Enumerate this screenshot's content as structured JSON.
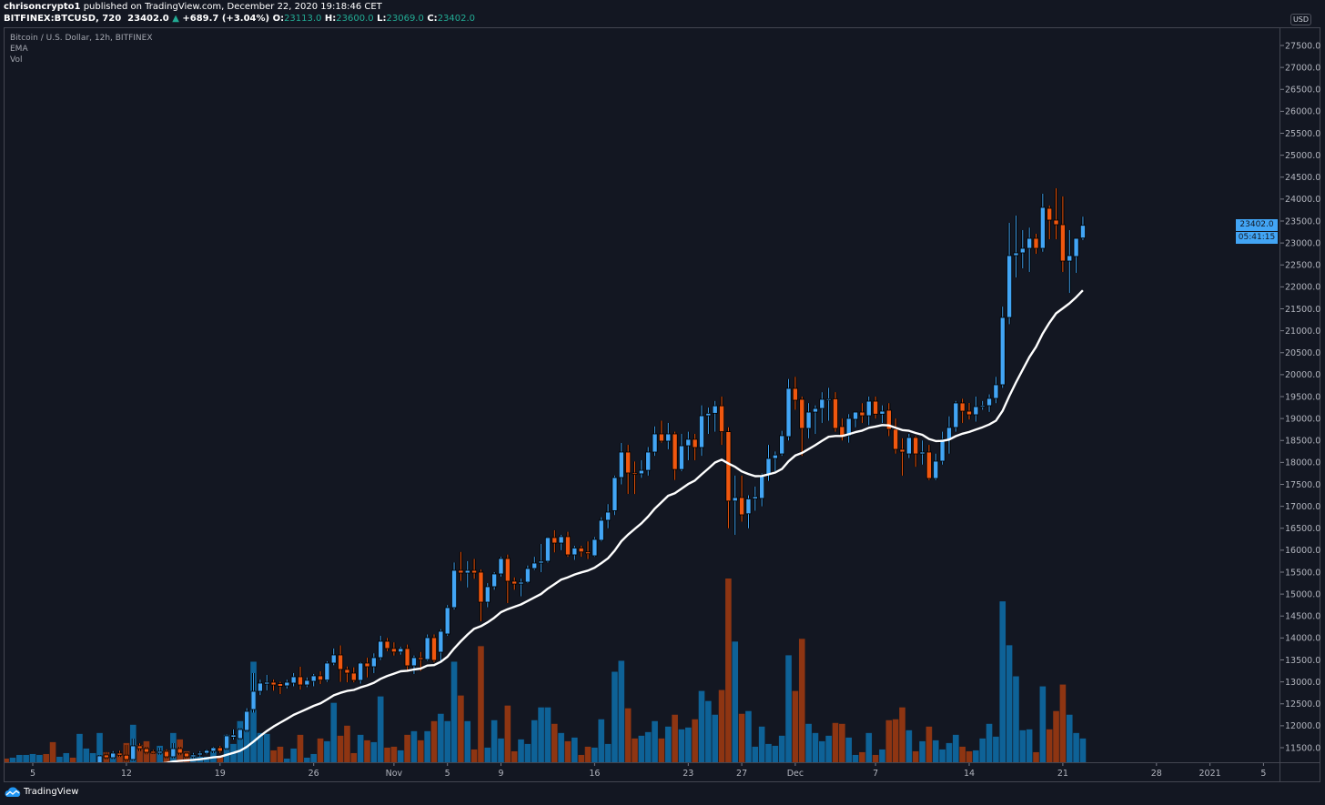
{
  "header": {
    "author": "chrisoncrypto1",
    "published": "published on TradingView.com, December 22, 2020 19:18:46 CET",
    "symbol": "BITFINEX:BTCUSD, 720",
    "last": "23402.0",
    "change": "+689.7 (+3.04%)",
    "o_label": "O:",
    "o": "23113.0",
    "h_label": "H:",
    "h": "23600.0",
    "l_label": "L:",
    "l": "23069.0",
    "c_label": "C:",
    "c": "23402.0"
  },
  "legend": {
    "title": "Bitcoin / U.S. Dollar, 12h, BITFINEX",
    "ema": "EMA",
    "vol": "Vol"
  },
  "axis": {
    "currency": "USD",
    "last_price_label": "23402.0",
    "countdown": "05:41:15"
  },
  "branding": {
    "name": "TradingView"
  },
  "colors": {
    "background": "#131722",
    "up": "#42a5f5",
    "down": "#f0570f",
    "vol_up": "#0e6297",
    "vol_down": "#8e3512",
    "ema": "#ffffff",
    "header_values": "#22ab94"
  },
  "chart_data": {
    "type": "candlestick",
    "symbol": "BITFINEX:BTCUSD",
    "interval": "12h",
    "start": "2020-10-03T00:00",
    "fields": [
      "open",
      "high",
      "low",
      "close",
      "volume_relative"
    ],
    "ylim": [
      11250,
      27750
    ],
    "y_ticks": [
      11500,
      12000,
      12500,
      13000,
      13500,
      14000,
      14500,
      15000,
      15500,
      16000,
      16500,
      17000,
      17500,
      18000,
      18500,
      19000,
      19500,
      20000,
      20500,
      21000,
      21500,
      22000,
      22500,
      23000,
      23500,
      24000,
      24500,
      25000,
      25500,
      26000,
      26500,
      27000,
      27500
    ],
    "x_ticks": [
      {
        "date": "2020-10-05",
        "label": "5"
      },
      {
        "date": "2020-10-12",
        "label": "12"
      },
      {
        "date": "2020-10-19",
        "label": "19"
      },
      {
        "date": "2020-10-26",
        "label": "26"
      },
      {
        "date": "2020-11-01",
        "label": "Nov"
      },
      {
        "date": "2020-11-05",
        "label": "5"
      },
      {
        "date": "2020-11-09",
        "label": "9"
      },
      {
        "date": "2020-11-16",
        "label": "16"
      },
      {
        "date": "2020-11-23",
        "label": "23"
      },
      {
        "date": "2020-11-27",
        "label": "27"
      },
      {
        "date": "2020-12-01",
        "label": "Dec"
      },
      {
        "date": "2020-12-07",
        "label": "7"
      },
      {
        "date": "2020-12-14",
        "label": "14"
      },
      {
        "date": "2020-12-21",
        "label": "21"
      },
      {
        "date": "2020-12-28",
        "label": "28"
      },
      {
        "date": "2021-01-01",
        "label": "2021"
      },
      {
        "date": "2021-01-05",
        "label": "5"
      }
    ],
    "indicators": [
      "EMA",
      "Vol"
    ],
    "candles": [
      [
        10580,
        10600,
        10500,
        10550,
        4
      ],
      [
        10550,
        10620,
        10520,
        10560,
        5
      ],
      [
        10560,
        10650,
        10520,
        10620,
        8
      ],
      [
        10620,
        10700,
        10600,
        10670,
        8
      ],
      [
        10670,
        10760,
        10630,
        10720,
        9
      ],
      [
        10720,
        10800,
        10700,
        10790,
        8
      ],
      [
        10790,
        10800,
        10600,
        10640,
        9
      ],
      [
        10640,
        10680,
        10550,
        10600,
        22
      ],
      [
        10600,
        10680,
        10570,
        10650,
        6
      ],
      [
        10650,
        10700,
        10620,
        10670,
        10
      ],
      [
        10670,
        10800,
        10540,
        10640,
        5
      ],
      [
        10640,
        10950,
        10620,
        10920,
        31
      ],
      [
        10920,
        11000,
        10850,
        10980,
        15
      ],
      [
        10980,
        11120,
        10940,
        11060,
        10
      ],
      [
        11148,
        11330,
        11100,
        11314,
        32
      ],
      [
        11335,
        11400,
        11230,
        11272,
        11
      ],
      [
        11272,
        11420,
        11240,
        11376,
        5
      ],
      [
        11376,
        11430,
        11290,
        11330,
        10
      ],
      [
        11330,
        11560,
        11180,
        11231,
        21
      ],
      [
        11231,
        11708,
        11200,
        11542,
        41
      ],
      [
        11542,
        11600,
        11420,
        11479,
        19
      ],
      [
        11479,
        11520,
        11350,
        11396,
        23
      ],
      [
        11417,
        11450,
        11360,
        11376,
        11
      ],
      [
        11376,
        11500,
        11340,
        11417,
        18
      ],
      [
        11417,
        11460,
        11250,
        11293,
        13
      ],
      [
        11293,
        11604,
        11260,
        11479,
        32
      ],
      [
        11479,
        11520,
        11330,
        11376,
        25
      ],
      [
        11376,
        11400,
        11250,
        11293,
        12
      ],
      [
        11293,
        11380,
        11260,
        11335,
        8
      ],
      [
        11335,
        11420,
        11300,
        11376,
        6
      ],
      [
        11376,
        11460,
        11350,
        11438,
        6
      ],
      [
        11420,
        11520,
        11380,
        11500,
        12
      ],
      [
        11500,
        11540,
        11380,
        11420,
        6
      ],
      [
        11479,
        11800,
        11440,
        11770,
        30
      ],
      [
        11740,
        11915,
        11687,
        11790,
        20
      ],
      [
        11708,
        11950,
        11680,
        11915,
        45
      ],
      [
        11894,
        12400,
        11850,
        12329,
        56
      ],
      [
        12370,
        13200,
        12300,
        12785,
        110
      ],
      [
        12785,
        13050,
        12700,
        12972,
        32
      ],
      [
        12950,
        13159,
        12806,
        12992,
        31
      ],
      [
        12992,
        13050,
        12800,
        12930,
        13
      ],
      [
        12960,
        13000,
        12723,
        12900,
        17
      ],
      [
        12910,
        13050,
        12850,
        12992,
        4
      ],
      [
        12972,
        13200,
        12900,
        13117,
        15
      ],
      [
        13117,
        13345,
        12827,
        12930,
        30
      ],
      [
        12930,
        13100,
        12880,
        13034,
        5
      ],
      [
        13013,
        13180,
        12900,
        13138,
        9
      ],
      [
        13138,
        13240,
        12950,
        13040,
        26
      ],
      [
        13040,
        13470,
        13000,
        13428,
        23
      ],
      [
        13428,
        13760,
        13380,
        13614,
        65
      ],
      [
        13614,
        13830,
        13000,
        13283,
        29
      ],
      [
        13283,
        13350,
        12990,
        13200,
        40
      ],
      [
        13200,
        13330,
        12990,
        13034,
        10
      ],
      [
        13034,
        13450,
        12960,
        13428,
        30
      ],
      [
        13428,
        13550,
        13100,
        13345,
        24
      ],
      [
        13345,
        13650,
        13200,
        13552,
        22
      ],
      [
        13552,
        14050,
        13500,
        13925,
        72
      ],
      [
        13925,
        14000,
        13700,
        13760,
        16
      ],
      [
        13760,
        13900,
        13600,
        13680,
        17
      ],
      [
        13680,
        13800,
        13620,
        13760,
        13
      ],
      [
        13760,
        13850,
        13250,
        13366,
        30
      ],
      [
        13366,
        13600,
        13180,
        13552,
        34
      ],
      [
        13552,
        13680,
        13250,
        13510,
        24
      ],
      [
        13510,
        14080,
        13480,
        14008,
        34
      ],
      [
        14008,
        14080,
        13450,
        13490,
        45
      ],
      [
        13676,
        14200,
        13450,
        14153,
        53
      ],
      [
        14091,
        14750,
        14050,
        14692,
        45
      ],
      [
        14692,
        15720,
        14650,
        15542,
        110
      ],
      [
        15542,
        15960,
        15300,
        15480,
        73
      ],
      [
        15480,
        15750,
        15150,
        15540,
        45
      ],
      [
        15540,
        15800,
        15350,
        15480,
        14
      ],
      [
        15500,
        15560,
        14380,
        14816,
        127
      ],
      [
        14816,
        15250,
        14700,
        15169,
        16
      ],
      [
        15169,
        15500,
        15100,
        15459,
        46
      ],
      [
        15459,
        15850,
        15400,
        15811,
        26
      ],
      [
        15811,
        15900,
        14795,
        15293,
        62
      ],
      [
        15293,
        15380,
        15100,
        15230,
        12
      ],
      [
        15230,
        15350,
        14950,
        15272,
        25
      ],
      [
        15272,
        15650,
        15250,
        15583,
        20
      ],
      [
        15583,
        15850,
        15550,
        15707,
        46
      ],
      [
        15707,
        16142,
        15500,
        15750,
        60
      ],
      [
        15749,
        16300,
        15720,
        16288,
        60
      ],
      [
        16288,
        16454,
        15950,
        16163,
        42
      ],
      [
        16163,
        16350,
        16000,
        16309,
        32
      ],
      [
        16309,
        16420,
        15850,
        15894,
        23
      ],
      [
        15894,
        16100,
        15780,
        16050,
        27
      ],
      [
        16050,
        16100,
        15850,
        15960,
        8
      ],
      [
        15960,
        16200,
        15800,
        15920,
        17
      ],
      [
        15873,
        16300,
        15850,
        16246,
        16
      ],
      [
        16226,
        16750,
        16200,
        16682,
        47
      ],
      [
        16682,
        17050,
        16500,
        16868,
        20
      ],
      [
        16900,
        17700,
        16800,
        17655,
        99
      ],
      [
        17656,
        18443,
        17500,
        18236,
        111
      ],
      [
        18236,
        18400,
        17283,
        17760,
        59
      ],
      [
        17760,
        18020,
        17280,
        17740,
        26
      ],
      [
        17740,
        18050,
        17650,
        17820,
        29
      ],
      [
        17820,
        18350,
        17700,
        18236,
        33
      ],
      [
        18236,
        18820,
        18150,
        18650,
        45
      ],
      [
        18650,
        18950,
        18450,
        18485,
        26
      ],
      [
        18485,
        18900,
        18300,
        18650,
        39
      ],
      [
        18650,
        18700,
        17600,
        17840,
        52
      ],
      [
        17840,
        18650,
        17800,
        18380,
        36
      ],
      [
        18380,
        18700,
        18050,
        18527,
        38
      ],
      [
        18527,
        18650,
        18050,
        18340,
        47
      ],
      [
        18340,
        19300,
        18150,
        19064,
        78
      ],
      [
        19064,
        19250,
        18650,
        19120,
        67
      ],
      [
        19120,
        19400,
        18700,
        19290,
        52
      ],
      [
        19290,
        19500,
        18400,
        18700,
        79
      ],
      [
        18700,
        18800,
        16500,
        17120,
        201
      ],
      [
        17120,
        17700,
        16350,
        17200,
        132
      ],
      [
        17200,
        17700,
        16650,
        16806,
        53
      ],
      [
        16830,
        17250,
        16500,
        17170,
        56
      ],
      [
        17170,
        17450,
        16900,
        17220,
        17
      ],
      [
        17180,
        17750,
        17000,
        17717,
        39
      ],
      [
        17717,
        18400,
        17580,
        18090,
        20
      ],
      [
        18090,
        18250,
        17800,
        18170,
        18
      ],
      [
        18194,
        18720,
        18150,
        18610,
        29
      ],
      [
        18588,
        19900,
        18500,
        19687,
        117
      ],
      [
        19687,
        19950,
        19200,
        19417,
        78
      ],
      [
        19438,
        19500,
        18150,
        18775,
        135
      ],
      [
        18775,
        19350,
        18550,
        19147,
        42
      ],
      [
        19147,
        19300,
        18650,
        19230,
        32
      ],
      [
        19230,
        19600,
        18900,
        19438,
        23
      ],
      [
        19420,
        19700,
        18950,
        19450,
        29
      ],
      [
        19450,
        19600,
        18700,
        18775,
        43
      ],
      [
        18817,
        19000,
        18500,
        18610,
        42
      ],
      [
        18610,
        19100,
        18450,
        19003,
        27
      ],
      [
        18982,
        19150,
        18800,
        19147,
        8
      ],
      [
        19147,
        19350,
        18900,
        19064,
        11
      ],
      [
        19064,
        19500,
        18850,
        19396,
        32
      ],
      [
        19396,
        19500,
        19000,
        19100,
        8
      ],
      [
        19100,
        19300,
        18900,
        19168,
        14
      ],
      [
        19189,
        19350,
        18600,
        18755,
        46
      ],
      [
        18755,
        19000,
        18200,
        18298,
        47
      ],
      [
        18298,
        18550,
        17700,
        18236,
        60
      ],
      [
        18194,
        18650,
        18100,
        18568,
        35
      ],
      [
        18568,
        18600,
        17900,
        18194,
        12
      ],
      [
        18194,
        18500,
        17950,
        18236,
        23
      ],
      [
        18236,
        18400,
        17600,
        17635,
        39
      ],
      [
        17635,
        18200,
        17600,
        18029,
        24
      ],
      [
        18029,
        18700,
        17950,
        18527,
        14
      ],
      [
        18527,
        19050,
        18200,
        18796,
        21
      ],
      [
        18796,
        19400,
        18700,
        19355,
        30
      ],
      [
        19355,
        19450,
        18900,
        19168,
        17
      ],
      [
        19168,
        19355,
        18980,
        19086,
        12
      ],
      [
        19086,
        19500,
        18930,
        19272,
        13
      ],
      [
        19272,
        19400,
        19200,
        19293,
        26
      ],
      [
        19293,
        19550,
        19150,
        19459,
        42
      ],
      [
        19459,
        19950,
        19350,
        19770,
        28
      ],
      [
        19770,
        21550,
        19700,
        21303,
        176
      ],
      [
        21303,
        23459,
        21150,
        22713,
        128
      ],
      [
        22713,
        23624,
        22215,
        22775,
        94
      ],
      [
        22775,
        23293,
        22422,
        22878,
        35
      ],
      [
        22878,
        23350,
        22340,
        23106,
        36
      ],
      [
        23106,
        23210,
        22754,
        22878,
        11
      ],
      [
        22878,
        24122,
        22800,
        23811,
        83
      ],
      [
        23790,
        23850,
        23085,
        23521,
        36
      ],
      [
        23521,
        24246,
        23085,
        23417,
        56
      ],
      [
        23417,
        24060,
        22340,
        22588,
        85
      ],
      [
        22588,
        23293,
        21863,
        22713,
        52
      ],
      [
        22692,
        23106,
        22319,
        23106,
        32
      ],
      [
        23113,
        23600,
        23069,
        23402,
        26
      ]
    ]
  }
}
